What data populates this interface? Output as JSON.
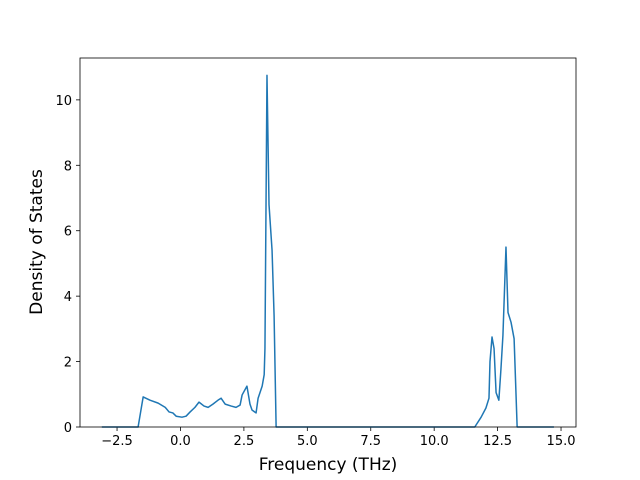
{
  "chart_data": {
    "type": "line",
    "x_label": "Frequency (THz)",
    "y_label": "Density of States",
    "x": [
      -3.1,
      -1.67,
      -1.47,
      -1.2,
      -0.88,
      -0.6,
      -0.45,
      -0.3,
      -0.17,
      0.06,
      0.22,
      0.38,
      0.57,
      0.73,
      0.93,
      1.09,
      1.28,
      1.48,
      1.6,
      1.76,
      2.0,
      2.19,
      2.35,
      2.43,
      2.62,
      2.74,
      2.82,
      2.98,
      3.06,
      3.22,
      3.3,
      3.33,
      3.41,
      3.49,
      3.61,
      3.69,
      3.77,
      11.6,
      11.85,
      12.04,
      12.16,
      12.2,
      12.28,
      12.36,
      12.44,
      12.55,
      12.63,
      12.71,
      12.83,
      12.91,
      13.03,
      13.15,
      13.27,
      14.72
    ],
    "series": [
      {
        "color": "#1f77b4",
        "values": [
          0,
          0,
          0.92,
          0.82,
          0.73,
          0.6,
          0.46,
          0.43,
          0.33,
          0.3,
          0.33,
          0.46,
          0.6,
          0.76,
          0.64,
          0.6,
          0.7,
          0.82,
          0.88,
          0.7,
          0.64,
          0.6,
          0.67,
          0.98,
          1.25,
          0.7,
          0.52,
          0.43,
          0.88,
          1.25,
          1.6,
          2.4,
          10.75,
          6.8,
          5.4,
          3.4,
          0,
          0,
          0.3,
          0.58,
          0.88,
          2.0,
          2.75,
          2.4,
          1.05,
          0.82,
          1.75,
          2.8,
          5.5,
          3.5,
          3.2,
          2.7,
          0,
          0
        ]
      }
    ],
    "xlim": [
      -3.96,
      15.59
    ],
    "ylim": [
      0,
      11.28
    ],
    "xticks": [
      {
        "value": -2.5,
        "label": "−2.5"
      },
      {
        "value": 0,
        "label": "0.0"
      },
      2.5,
      {
        "value": 5,
        "label": "5.0"
      },
      7.5,
      {
        "value": 10,
        "label": "10.0"
      },
      12.5,
      {
        "value": 15,
        "label": "15.0"
      }
    ],
    "yticks": [
      0,
      2,
      4,
      6,
      8,
      10
    ],
    "grid": false
  }
}
